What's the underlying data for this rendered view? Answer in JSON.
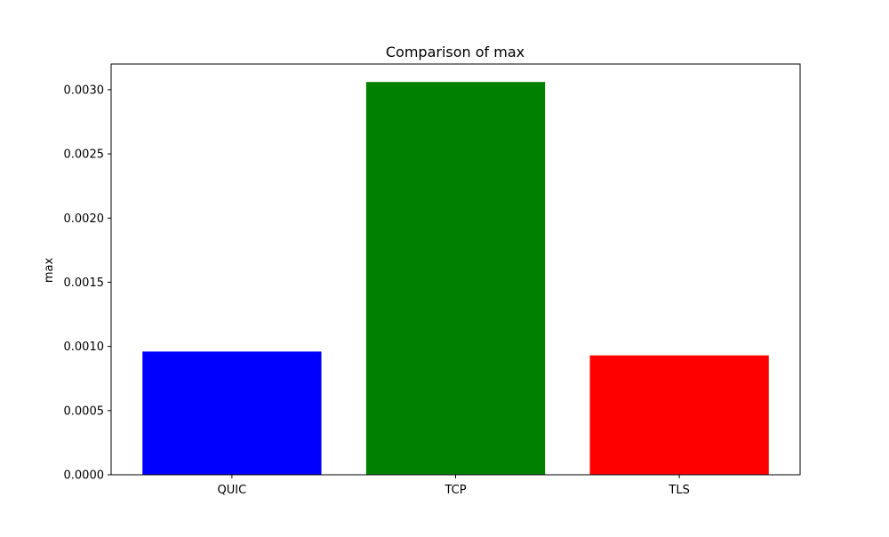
{
  "chart_data": {
    "type": "bar",
    "title": "Comparison of max",
    "xlabel": "",
    "ylabel": "max",
    "categories": [
      "QUIC",
      "TCP",
      "TLS"
    ],
    "values": [
      0.00096,
      0.00306,
      0.00093
    ],
    "colors": [
      "#0000ff",
      "#008000",
      "#ff0000"
    ],
    "ylim": [
      0,
      0.0032
    ],
    "yticks": [
      0,
      0.0005,
      0.001,
      0.0015,
      0.002,
      0.0025,
      0.003
    ],
    "ytick_labels": [
      "0.0000",
      "0.0005",
      "0.0010",
      "0.0015",
      "0.0020",
      "0.0025",
      "0.0030"
    ],
    "grid": false,
    "legend": false
  }
}
